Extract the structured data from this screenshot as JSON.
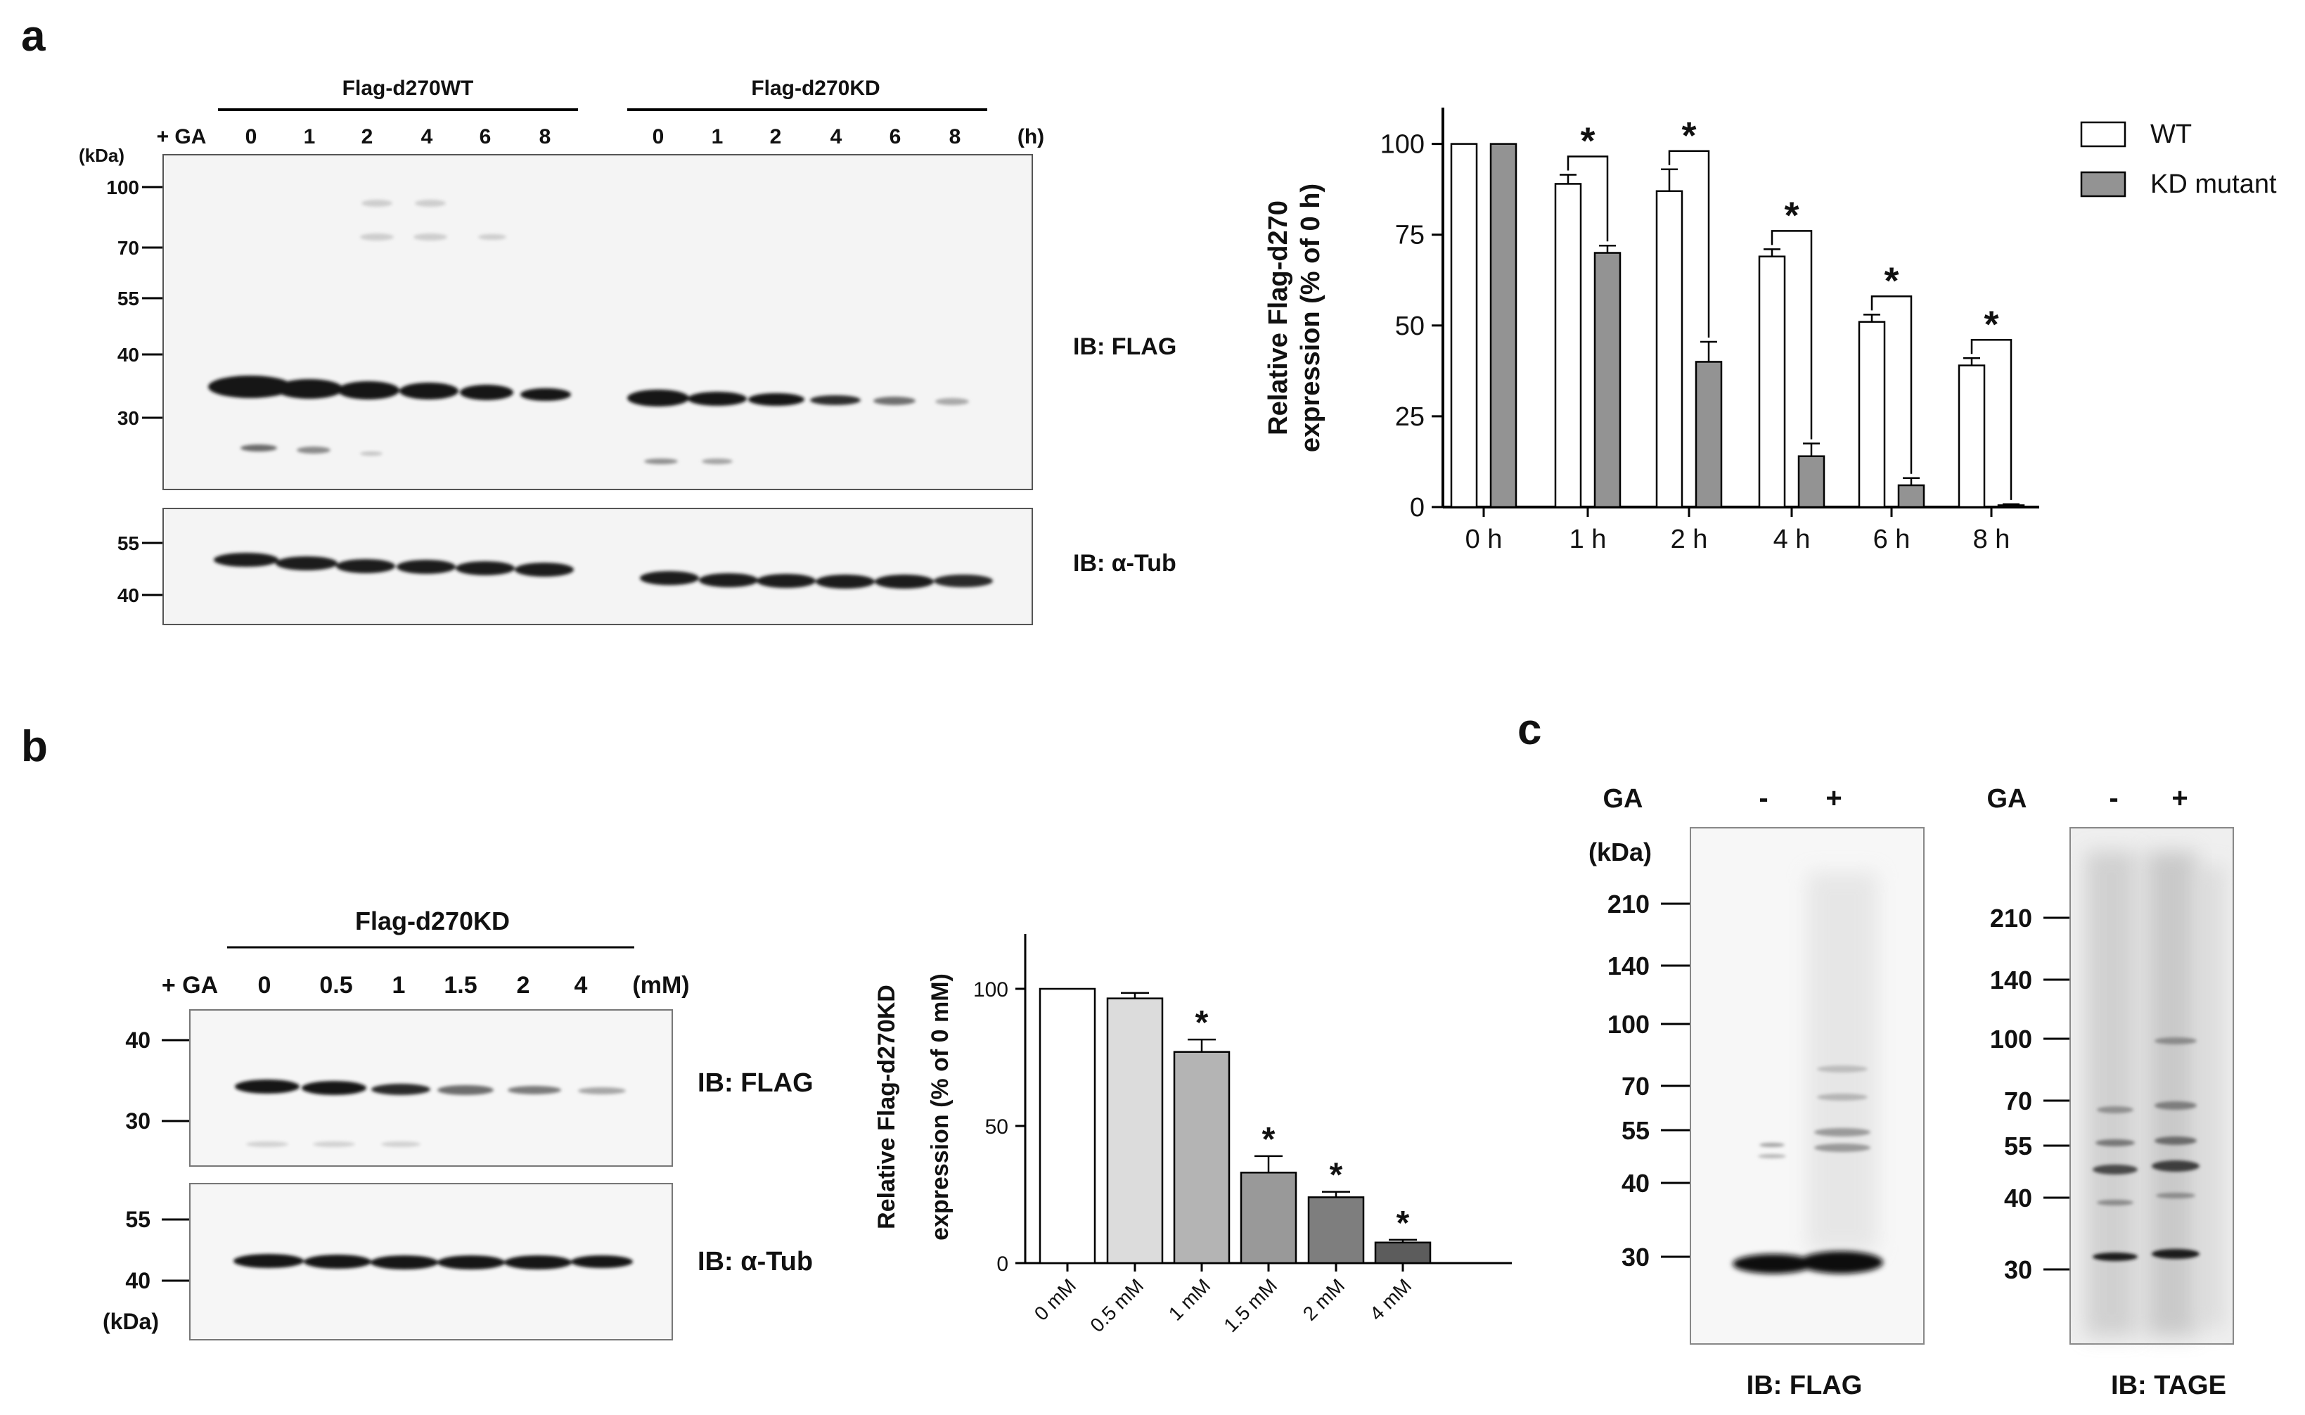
{
  "panels": {
    "a": {
      "letter": "a",
      "blot": {
        "groups": [
          "Flag-d270WT",
          "Flag-d270KD"
        ],
        "treatment": "+ GA",
        "lanes_wt": [
          "0",
          "1",
          "2",
          "4",
          "6",
          "8"
        ],
        "lanes_kd": [
          "0",
          "1",
          "2",
          "4",
          "6",
          "8"
        ],
        "unit": "(h)",
        "kda_label": "(kDa)",
        "markers_top": [
          "100",
          "70",
          "55",
          "40",
          "30"
        ],
        "markers_bottom": [
          "55",
          "40"
        ],
        "ib_top": "IB: FLAG",
        "ib_bottom": "IB: α-Tub"
      }
    },
    "b": {
      "letter": "b",
      "blot": {
        "group": "Flag-d270KD",
        "treatment": "+ GA",
        "lanes": [
          "0",
          "0.5",
          "1",
          "1.5",
          "2",
          "4"
        ],
        "unit": "(mM)",
        "kda_label": "(kDa)",
        "markers_top": [
          "40",
          "30"
        ],
        "markers_bottom": [
          "55",
          "40"
        ],
        "ib_top": "IB: FLAG",
        "ib_bottom": "IB: α-Tub"
      }
    },
    "c": {
      "letter": "c",
      "treatment": "GA",
      "lanes": [
        "-",
        "+"
      ],
      "kda_label": "(kDa)",
      "markers_left": [
        "210",
        "140",
        "100",
        "70",
        "55",
        "40",
        "30"
      ],
      "markers_right": [
        "210",
        "140",
        "100",
        "70",
        "55",
        "40",
        "30"
      ],
      "ib_left": "IB: FLAG",
      "ib_right": "IB: TAGE"
    }
  },
  "chart_data": [
    {
      "panel": "a",
      "type": "bar",
      "categories": [
        "0 h",
        "1 h",
        "2 h",
        "4 h",
        "6 h",
        "8 h"
      ],
      "series": [
        {
          "name": "WT",
          "values": [
            100,
            89,
            87,
            69,
            51,
            39
          ],
          "errors": [
            0,
            2.5,
            6,
            2,
            2,
            2
          ],
          "color": "#ffffff"
        },
        {
          "name": "KD mutant",
          "values": [
            100,
            70,
            40,
            14,
            6,
            0.5
          ],
          "errors": [
            0,
            2,
            5.5,
            3.5,
            2,
            0.3
          ],
          "color": "#939393"
        }
      ],
      "significance": [
        "",
        "*",
        "*",
        "*",
        "*",
        "*"
      ],
      "ylabel_line1": "Relative Flag-d270",
      "ylabel_line2": "expression (% of 0 h)",
      "ylim": [
        0,
        110
      ],
      "yticks": [
        0,
        25,
        50,
        75,
        100
      ],
      "legend": "top-right"
    },
    {
      "panel": "b",
      "type": "bar",
      "categories": [
        "0 mM",
        "0.5 mM",
        "1 mM",
        "1.5 mM",
        "2 mM",
        "4 mM"
      ],
      "values": [
        100,
        96.5,
        77,
        33,
        24,
        7.5
      ],
      "errors": [
        0,
        2,
        4.5,
        6,
        2,
        1
      ],
      "colors": [
        "#ffffff",
        "#dcdcdc",
        "#b4b4b4",
        "#999999",
        "#7e7e7e",
        "#5c5c5c"
      ],
      "significance": [
        "",
        "",
        "*",
        "*",
        "*",
        "*"
      ],
      "ylabel_line1": "Relative Flag-d270KD",
      "ylabel_line2": "expression (% of 0 mM)",
      "ylim": [
        0,
        120
      ],
      "yticks": [
        0,
        50,
        100
      ]
    }
  ]
}
